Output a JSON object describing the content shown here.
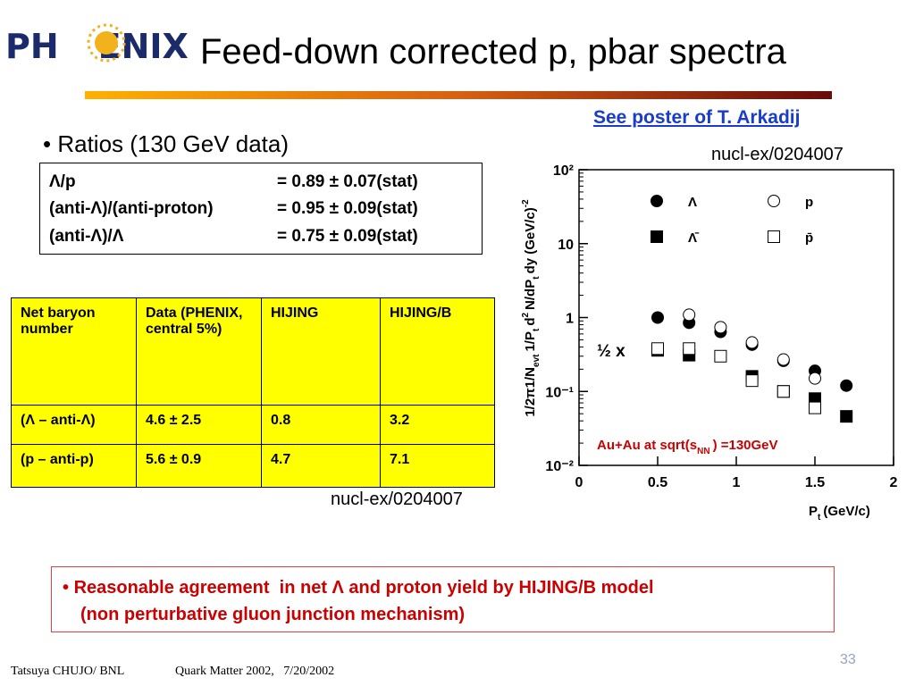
{
  "header": {
    "logo": [
      "PH",
      "ENIX"
    ],
    "title": "Feed-down corrected p, pbar spectra",
    "link": "See poster of T. Arkadij",
    "ref": "nucl-ex/0204007"
  },
  "bullet": "Ratios (130 GeV data)",
  "ratios": [
    [
      "Λ/p",
      "= 0.89 ± 0.07(stat)"
    ],
    [
      "(anti-Λ)/(anti-proton)",
      "= 0.95 ± 0.09(stat)"
    ],
    [
      "(anti-Λ)/Λ",
      "= 0.75 ± 0.09(stat)"
    ]
  ],
  "table": {
    "header": [
      "Net baryon number",
      "Data (PHENIX, central 5%)",
      "HIJING",
      "HIJING/B"
    ],
    "rows": [
      [
        "(Λ – anti-Λ)",
        "4.6 ± 2.5",
        "0.8",
        "3.2"
      ],
      [
        "(p – anti-p)",
        "5.6 ± 0.9",
        "4.7",
        "7.1"
      ]
    ]
  },
  "table_ref": "nucl-ex/0204007",
  "chart_data": {
    "type": "scatter",
    "log_y": true,
    "x": [
      0.5,
      0.7,
      0.9,
      1.1,
      1.3,
      1.5,
      1.7
    ],
    "series": [
      {
        "name": "Λ",
        "color": "#000000",
        "marker": "circle-filled",
        "values": [
          1.0,
          0.85,
          0.64,
          0.43,
          0.26,
          0.19,
          0.12
        ]
      },
      {
        "name": "p",
        "color": "#000000",
        "marker": "circle-open",
        "values": [
          null,
          1.09,
          0.74,
          0.46,
          0.27,
          0.15,
          null
        ]
      },
      {
        "name": "Λ̄",
        "color": "#000000",
        "marker": "square-filled",
        "values": [
          0.36,
          0.31,
          null,
          0.16,
          0.1,
          0.08,
          0.046
        ]
      },
      {
        "name": "p̄",
        "color": "#000000",
        "marker": "square-open",
        "values": [
          0.38,
          0.38,
          0.3,
          0.14,
          0.1,
          0.06,
          null
        ]
      }
    ],
    "xlim": [
      0,
      2
    ],
    "xticks": [
      0,
      0.5,
      1,
      1.5,
      2
    ],
    "ylim": [
      0.01,
      100
    ],
    "yticks": [
      {
        "value": 0.01,
        "label": "10⁻²"
      },
      {
        "value": 0.1,
        "label": "10⁻¹"
      },
      1,
      10,
      {
        "value": 100,
        "label": "10²"
      }
    ],
    "y_label": [
      "1/2π1/N",
      "evt",
      "1/P",
      "t",
      "d",
      "2",
      "N/dP",
      "t",
      "dy (GeV/c)",
      "-2"
    ],
    "x_label": [
      "P",
      "t",
      "(GeV/c)"
    ],
    "annotations": [
      "½ x"
    ],
    "condition": [
      "Au+Au at sqrt(s",
      "NN",
      ") =130GeV"
    ]
  },
  "conclusion": [
    "Reasonable agreement  in net Λ and proton yield by HIJING/B model",
    "(non perturbative gluon junction mechanism)"
  ],
  "footer": {
    "author": "Tatsuya CHUJO/ BNL",
    "event": "Quark Matter 2002,   7/20/2002",
    "page": "33"
  }
}
